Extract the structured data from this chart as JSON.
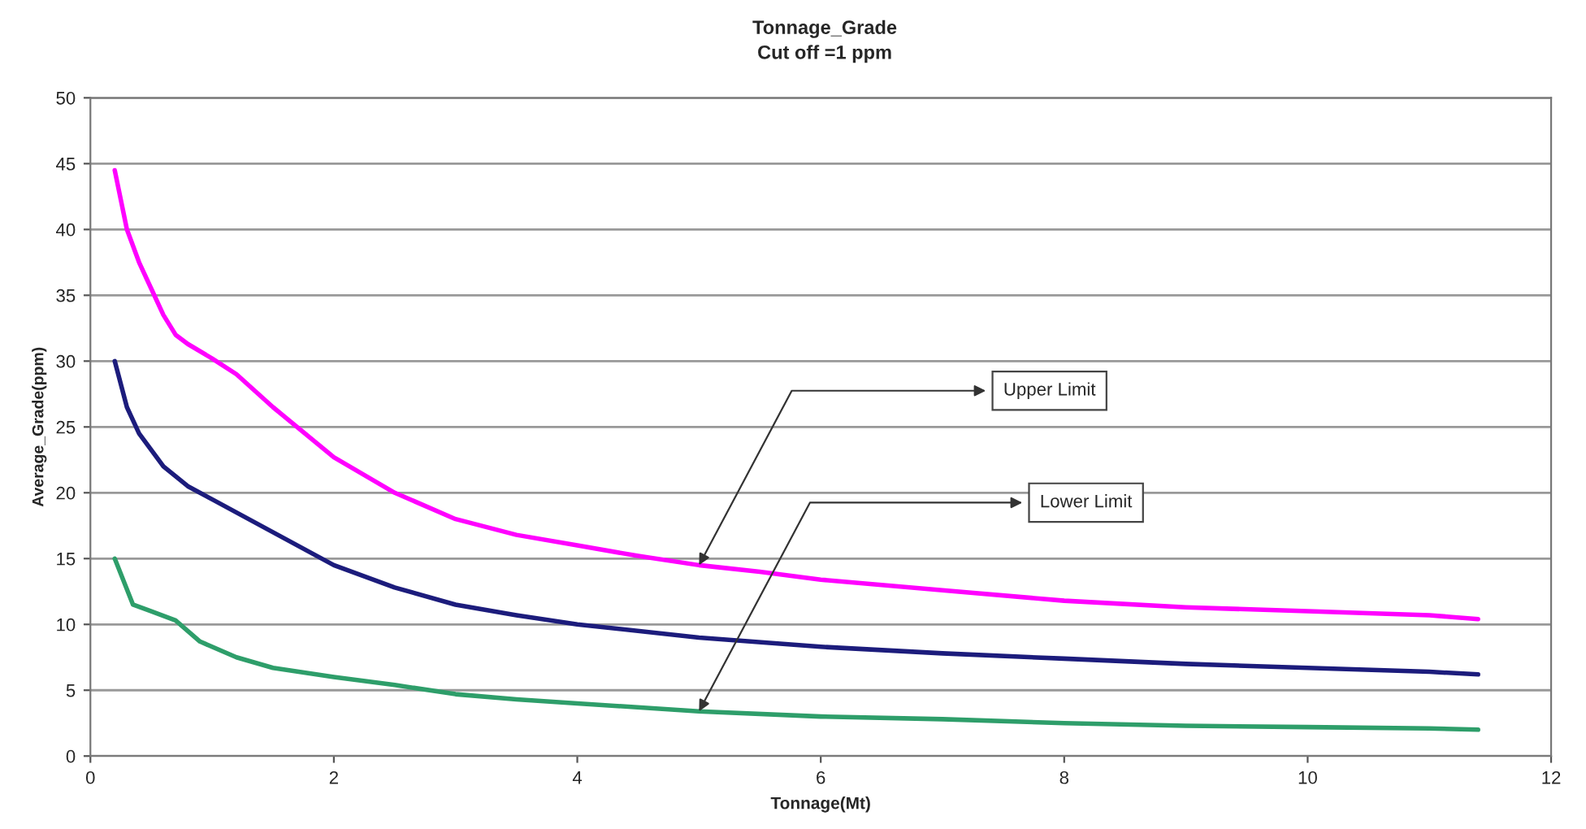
{
  "chart_data": {
    "type": "line",
    "title": "Tonnage_Grade",
    "subtitle": "Cut off =1 ppm",
    "xlabel": "Tonnage(Mt)",
    "ylabel": "Average_Grade(ppm)",
    "xlim": [
      0,
      12
    ],
    "xticks": [
      0,
      2,
      4,
      6,
      8,
      10,
      12
    ],
    "ylim": [
      0,
      50
    ],
    "yticks": [
      0,
      5,
      10,
      15,
      20,
      25,
      30,
      35,
      40,
      45,
      50
    ],
    "grid": "y",
    "marker": "none",
    "line_style": "solid",
    "series": [
      {
        "color": "#ff00ff",
        "x": [
          0.2,
          0.3,
          0.4,
          0.5,
          0.6,
          0.7,
          0.8,
          1.0,
          1.2,
          1.5,
          2.0,
          2.5,
          3.0,
          3.5,
          4.0,
          4.5,
          5.0,
          5.5,
          6.0,
          7.0,
          8.0,
          9.0,
          10.0,
          11.0,
          11.4
        ],
        "values": [
          44.5,
          40,
          37.5,
          35.5,
          33.5,
          32,
          31.3,
          30.2,
          29,
          26.5,
          22.7,
          20,
          18,
          16.8,
          16,
          15.2,
          14.5,
          14,
          13.4,
          12.6,
          11.8,
          11.3,
          11,
          10.7,
          10.4
        ]
      },
      {
        "color": "#1c1c7c",
        "x": [
          0.2,
          0.3,
          0.4,
          0.6,
          0.8,
          1.0,
          1.5,
          2.0,
          2.5,
          3.0,
          3.5,
          4.0,
          5.0,
          6.0,
          7.0,
          8.0,
          9.0,
          10.0,
          11.0,
          11.4
        ],
        "values": [
          30,
          26.5,
          24.5,
          22,
          20.5,
          19.5,
          17,
          14.5,
          12.8,
          11.5,
          10.7,
          10,
          9,
          8.3,
          7.8,
          7.4,
          7,
          6.7,
          6.4,
          6.2
        ]
      },
      {
        "color": "#2e9e6a",
        "x": [
          0.2,
          0.35,
          0.5,
          0.7,
          0.9,
          1.2,
          1.5,
          2.0,
          2.5,
          3.0,
          3.5,
          4.0,
          5.0,
          6.0,
          7.0,
          8.0,
          9.0,
          10.0,
          11.0,
          11.4
        ],
        "values": [
          15,
          11.5,
          11,
          10.3,
          8.7,
          7.5,
          6.7,
          6,
          5.4,
          4.7,
          4.3,
          4,
          3.4,
          3.0,
          2.8,
          2.5,
          2.3,
          2.2,
          2.1,
          2.0
        ]
      }
    ],
    "annotations": [
      "Upper Limit",
      "Lower Limit"
    ]
  }
}
